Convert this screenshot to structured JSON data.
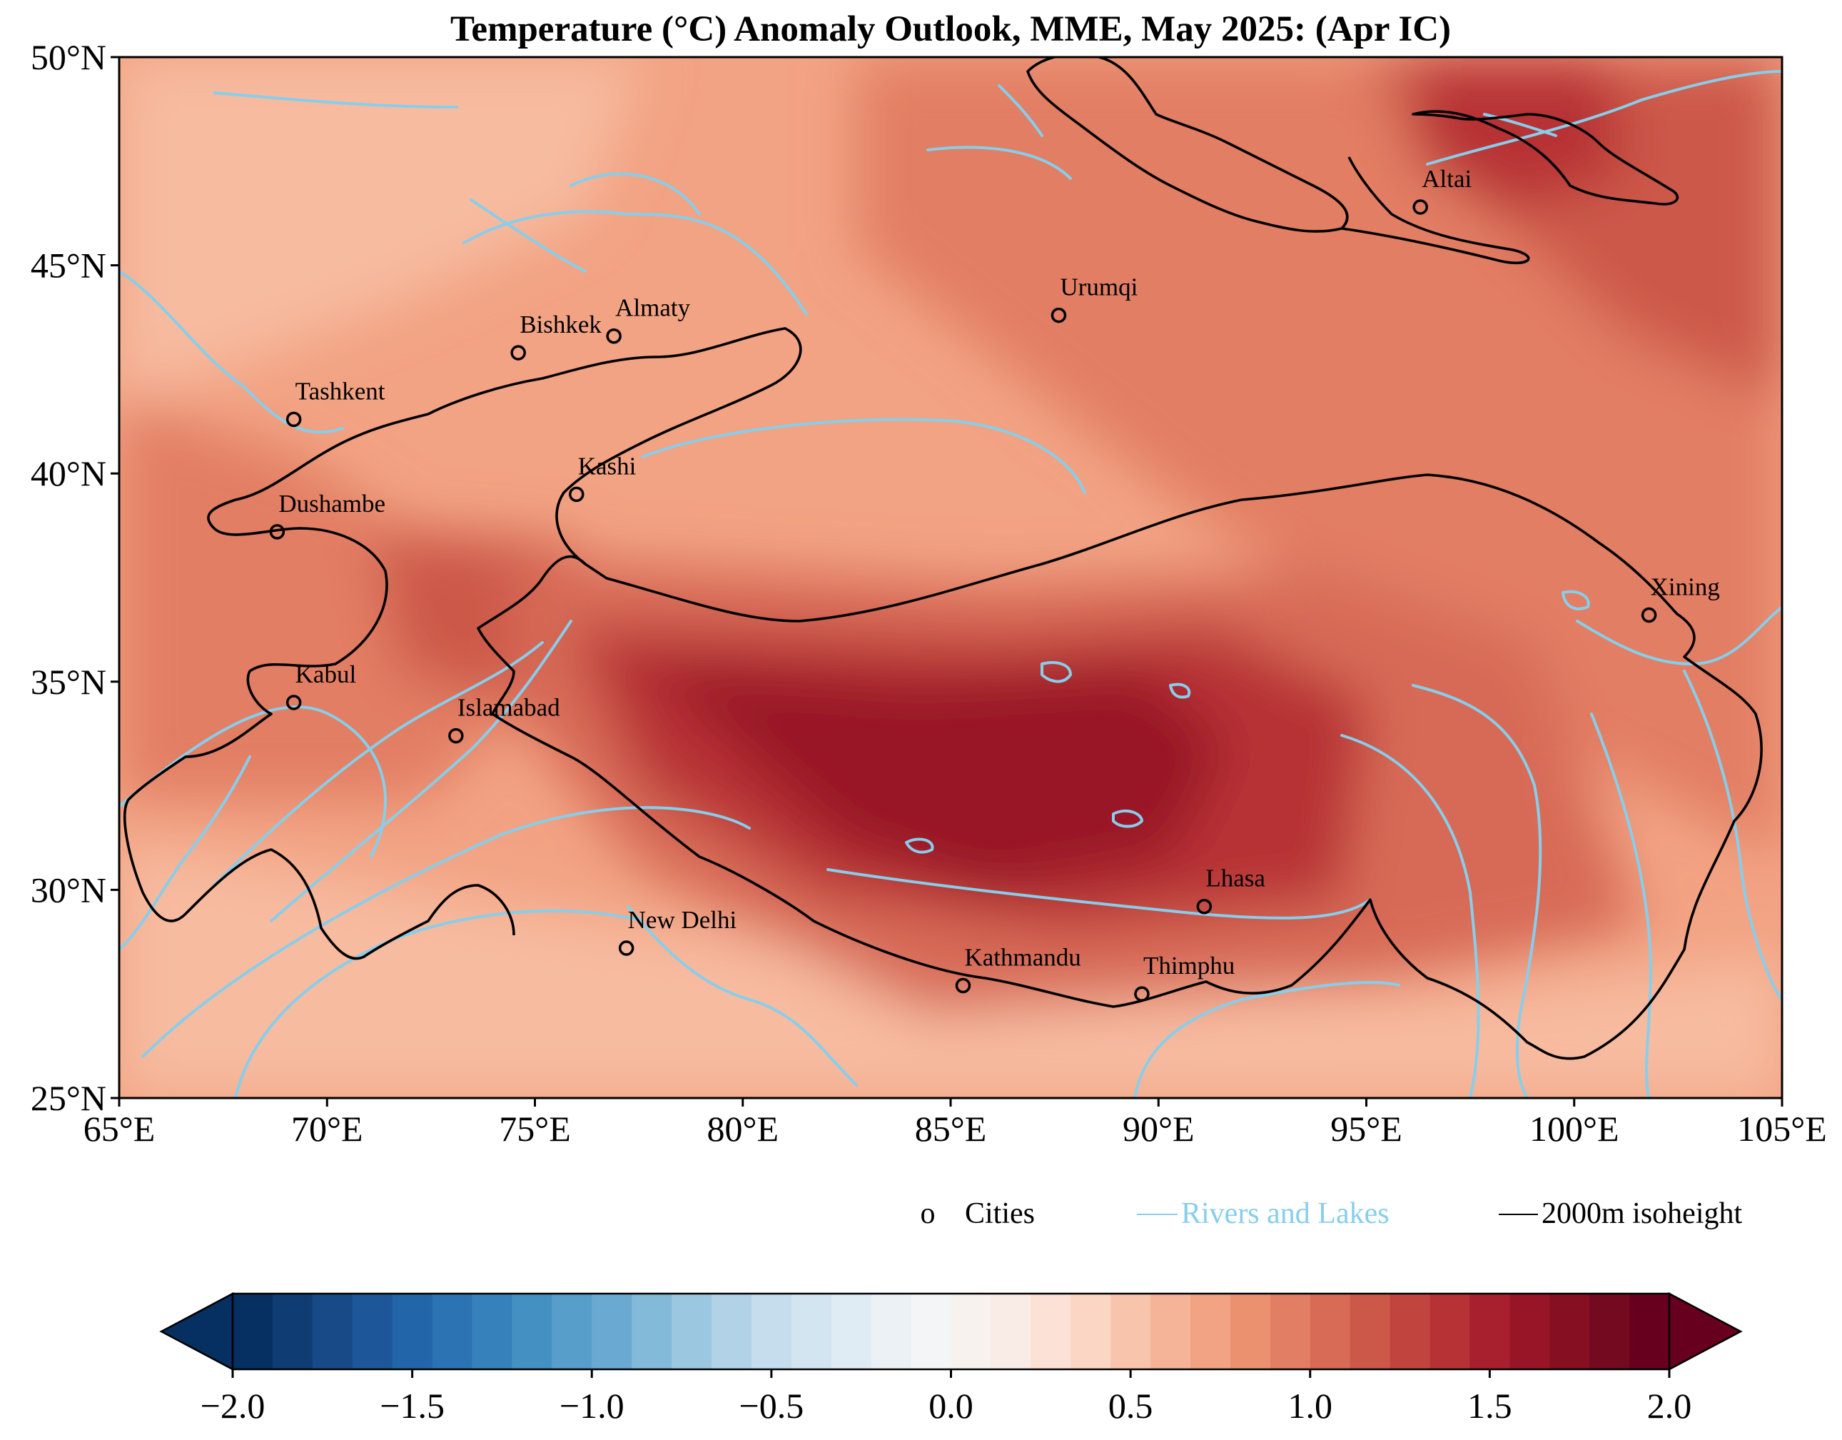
{
  "title": "Temperature (°C) Anomaly Outlook, MME, May  2025:  (Apr IC)",
  "map": {
    "lon_range": [
      65,
      105
    ],
    "lat_range": [
      25,
      50
    ],
    "x_ticks": [
      "65°E",
      "70°E",
      "75°E",
      "80°E",
      "85°E",
      "90°E",
      "95°E",
      "100°E",
      "105°E"
    ],
    "y_ticks": [
      "50°N",
      "45°N",
      "40°N",
      "35°N",
      "30°N",
      "25°N"
    ],
    "cities": [
      {
        "name": "Altai",
        "lon": 96.3,
        "lat": 46.4
      },
      {
        "name": "Urumqi",
        "lon": 87.6,
        "lat": 43.8
      },
      {
        "name": "Almaty",
        "lon": 76.9,
        "lat": 43.3
      },
      {
        "name": "Bishkek",
        "lon": 74.6,
        "lat": 42.9
      },
      {
        "name": "Tashkent",
        "lon": 69.2,
        "lat": 41.3
      },
      {
        "name": "Kashi",
        "lon": 76.0,
        "lat": 39.5
      },
      {
        "name": "Dushambe",
        "lon": 68.8,
        "lat": 38.6
      },
      {
        "name": "Xining",
        "lon": 101.8,
        "lat": 36.6
      },
      {
        "name": "Kabul",
        "lon": 69.2,
        "lat": 34.5
      },
      {
        "name": "Islamabad",
        "lon": 73.1,
        "lat": 33.7
      },
      {
        "name": "Lhasa",
        "lon": 91.1,
        "lat": 29.6
      },
      {
        "name": "New Delhi",
        "lon": 77.2,
        "lat": 28.6
      },
      {
        "name": "Kathmandu",
        "lon": 85.3,
        "lat": 27.7
      },
      {
        "name": "Thimphu",
        "lon": 89.6,
        "lat": 27.5
      }
    ],
    "colors": {
      "rivers": "#87ceeb",
      "isoheight": "#000000"
    }
  },
  "legend": {
    "cities_marker": "o",
    "cities_label": "Cities",
    "rivers_label": "Rivers and Lakes",
    "isoheight_label": "2000m isoheight"
  },
  "colorbar": {
    "min": -2.0,
    "max": 2.0,
    "ticks": [
      "−2.0",
      "−1.5",
      "−1.0",
      "−0.5",
      "0.0",
      "0.5",
      "1.0",
      "1.5",
      "2.0"
    ],
    "colors": [
      "#053061",
      "#0f3d73",
      "#174a87",
      "#1d5799",
      "#2265a8",
      "#2c73b3",
      "#3681bb",
      "#4590c3",
      "#589ecb",
      "#6aaad2",
      "#83b9d9",
      "#9cc7e1",
      "#b2d3e7",
      "#c5dded",
      "#d3e5f0",
      "#e0ecf3",
      "#ebf1f5",
      "#f4f5f6",
      "#f8f2ef",
      "#f9ebe5",
      "#fbe1d6",
      "#fcd6c5",
      "#f9c4ac",
      "#f5b498",
      "#f2a383",
      "#ec916f",
      "#e27e63",
      "#d76b56",
      "#cc584a",
      "#c2443f",
      "#b73234",
      "#a8202d",
      "#981527",
      "#860f22",
      "#740a1f",
      "#67001f"
    ]
  }
}
